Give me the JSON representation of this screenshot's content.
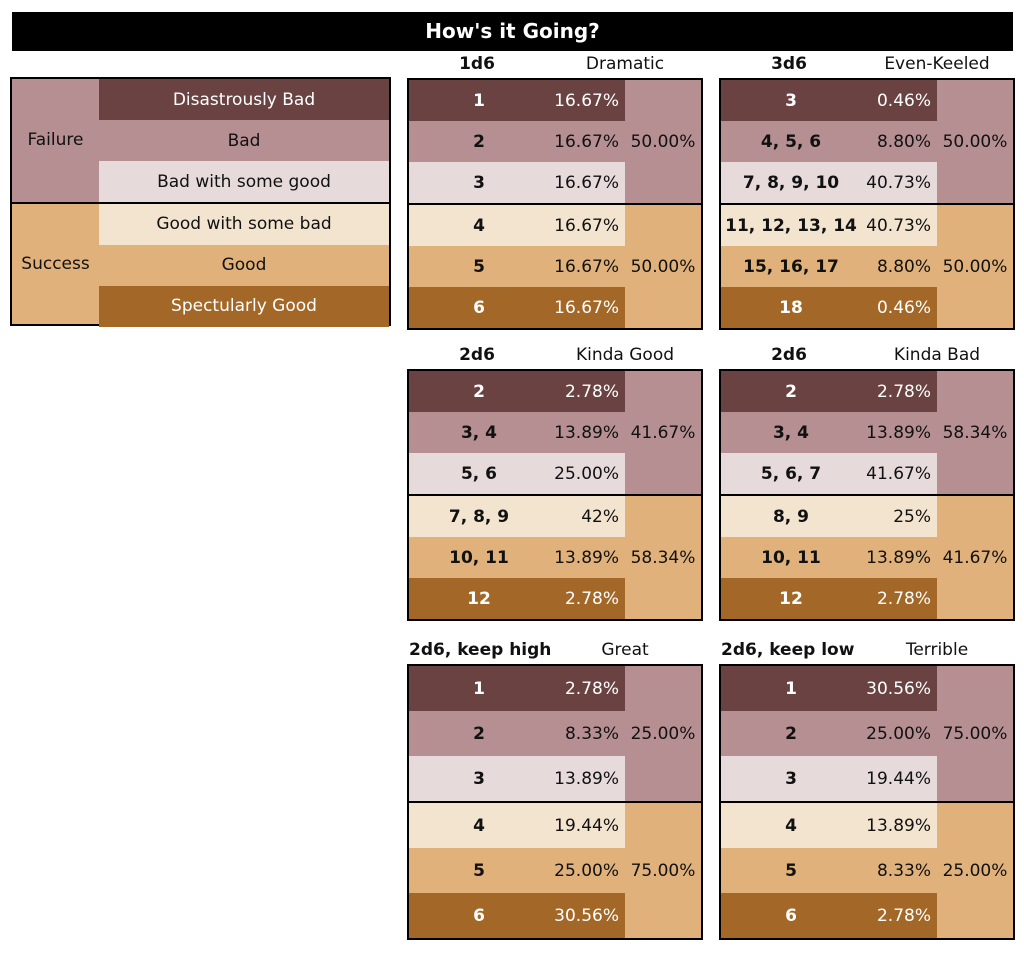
{
  "title": "How's it Going?",
  "legend": {
    "failure_label": "Failure",
    "success_label": "Success",
    "levels": [
      "Disastrously Bad",
      "Bad",
      "Bad with some good",
      "Good with some bad",
      "Good",
      "Spectularly Good"
    ]
  },
  "tables": [
    {
      "dice": "1d6",
      "mood": "Dramatic",
      "rows": [
        {
          "roll": "1",
          "pct": "16.67%"
        },
        {
          "roll": "2",
          "pct": "16.67%"
        },
        {
          "roll": "3",
          "pct": "16.67%"
        },
        {
          "roll": "4",
          "pct": "16.67%"
        },
        {
          "roll": "5",
          "pct": "16.67%"
        },
        {
          "roll": "6",
          "pct": "16.67%"
        }
      ],
      "failure_total": "50.00%",
      "success_total": "50.00%"
    },
    {
      "dice": "3d6",
      "mood": "Even-Keeled",
      "rows": [
        {
          "roll": "3",
          "pct": "0.46%"
        },
        {
          "roll": "4, 5, 6",
          "pct": "8.80%"
        },
        {
          "roll": "7, 8, 9, 10",
          "pct": "40.73%"
        },
        {
          "roll": "11, 12, 13, 14",
          "pct": "40.73%"
        },
        {
          "roll": "15, 16, 17",
          "pct": "8.80%"
        },
        {
          "roll": "18",
          "pct": "0.46%"
        }
      ],
      "failure_total": "50.00%",
      "success_total": "50.00%"
    },
    {
      "dice": "2d6",
      "mood": "Kinda Good",
      "rows": [
        {
          "roll": "2",
          "pct": "2.78%"
        },
        {
          "roll": "3, 4",
          "pct": "13.89%"
        },
        {
          "roll": "5, 6",
          "pct": "25.00%"
        },
        {
          "roll": "7, 8, 9",
          "pct": "42%"
        },
        {
          "roll": "10, 11",
          "pct": "13.89%"
        },
        {
          "roll": "12",
          "pct": "2.78%"
        }
      ],
      "failure_total": "41.67%",
      "success_total": "58.34%"
    },
    {
      "dice": "2d6",
      "mood": "Kinda Bad",
      "rows": [
        {
          "roll": "2",
          "pct": "2.78%"
        },
        {
          "roll": "3, 4",
          "pct": "13.89%"
        },
        {
          "roll": "5, 6, 7",
          "pct": "41.67%"
        },
        {
          "roll": "8, 9",
          "pct": "25%"
        },
        {
          "roll": "10, 11",
          "pct": "13.89%"
        },
        {
          "roll": "12",
          "pct": "2.78%"
        }
      ],
      "failure_total": "58.34%",
      "success_total": "41.67%"
    },
    {
      "dice": "2d6, keep high",
      "mood": "Great",
      "rows": [
        {
          "roll": "1",
          "pct": "2.78%"
        },
        {
          "roll": "2",
          "pct": "8.33%"
        },
        {
          "roll": "3",
          "pct": "13.89%"
        },
        {
          "roll": "4",
          "pct": "19.44%"
        },
        {
          "roll": "5",
          "pct": "25.00%"
        },
        {
          "roll": "6",
          "pct": "30.56%"
        }
      ],
      "failure_total": "25.00%",
      "success_total": "75.00%"
    },
    {
      "dice": "2d6, keep low",
      "mood": "Terrible",
      "rows": [
        {
          "roll": "1",
          "pct": "30.56%"
        },
        {
          "roll": "2",
          "pct": "25.00%"
        },
        {
          "roll": "3",
          "pct": "19.44%"
        },
        {
          "roll": "4",
          "pct": "13.89%"
        },
        {
          "roll": "5",
          "pct": "8.33%"
        },
        {
          "roll": "6",
          "pct": "2.78%"
        }
      ],
      "failure_total": "75.00%",
      "success_total": "25.00%"
    }
  ],
  "colors": {
    "disastrously_bad": "#6b4242",
    "bad": "#b58f92",
    "bad_with_some_good": "#e6dadb",
    "good_with_some_bad": "#f3e4d0",
    "good": "#e0b17a",
    "spectularly_good": "#a36828"
  }
}
